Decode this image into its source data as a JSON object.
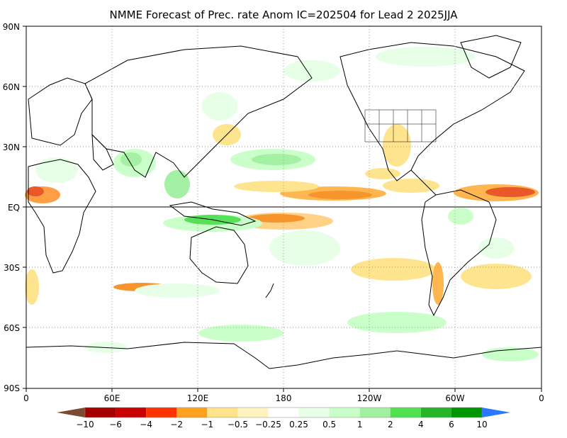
{
  "title": "NMME Forecast of Prec. rate Anom IC=202504 for Lead 2 2025JJA",
  "axes": {
    "y_ticks": [
      "90N",
      "60N",
      "30N",
      "EQ",
      "30S",
      "60S",
      "90S"
    ],
    "x_ticks": [
      "0",
      "60E",
      "120E",
      "180",
      "120W",
      "60W",
      "0"
    ]
  },
  "colorbar": {
    "colors": [
      "#7a4a32",
      "#a50000",
      "#c80000",
      "#ff3300",
      "#ffa01e",
      "#ffe38a",
      "#fff4c0",
      "#ffffff",
      "#e6ffe6",
      "#c8ffc8",
      "#a0f0a0",
      "#50e050",
      "#28b428",
      "#009600",
      "#2a78ff"
    ],
    "labels": [
      "−10",
      "−6",
      "−4",
      "−2",
      "−1",
      "−0.5",
      "−0.25",
      "0.25",
      "0.5",
      "1",
      "2",
      "4",
      "6",
      "10"
    ]
  }
}
